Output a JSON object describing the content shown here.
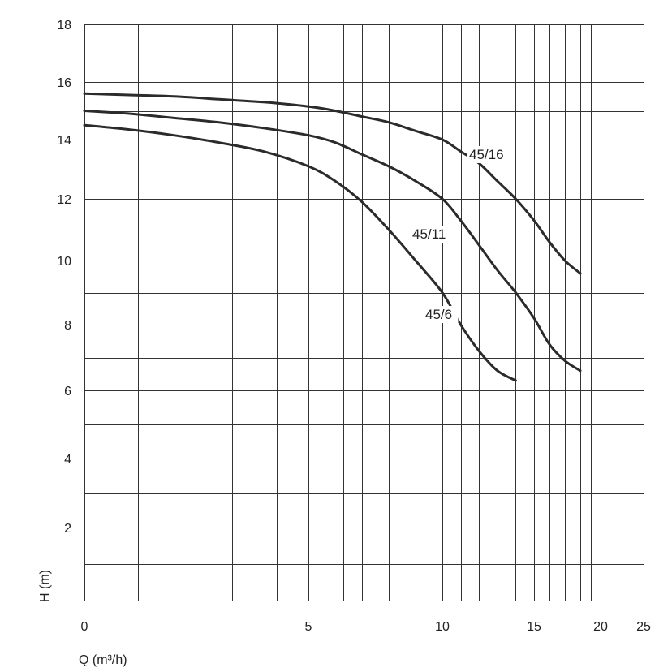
{
  "chart_data": {
    "type": "line",
    "title": "",
    "xlabel": "Q (m³/h)",
    "ylabel": "H (m)",
    "xlim": [
      0,
      25
    ],
    "ylim": [
      0,
      18
    ],
    "x_ticks": [
      {
        "value": 0,
        "label": "0"
      },
      {
        "value": 5,
        "label": "5"
      },
      {
        "value": 10,
        "label": "10"
      },
      {
        "value": 15,
        "label": "15"
      },
      {
        "value": 20,
        "label": "20"
      },
      {
        "value": 25,
        "label": "25"
      }
    ],
    "y_ticks": [
      {
        "value": 2,
        "label": "2"
      },
      {
        "value": 4,
        "label": "4"
      },
      {
        "value": 6,
        "label": "6"
      },
      {
        "value": 8,
        "label": "8"
      },
      {
        "value": 10,
        "label": "10"
      },
      {
        "value": 12,
        "label": "12"
      },
      {
        "value": 14,
        "label": "14"
      },
      {
        "value": 16,
        "label": "16"
      },
      {
        "value": 18,
        "label": "18"
      }
    ],
    "x_gridlines": [
      0,
      1.2,
      2.2,
      3.3,
      4.3,
      5,
      5.6,
      6.3,
      7,
      8,
      9,
      10,
      11,
      12,
      13,
      14,
      15,
      16,
      17,
      18,
      19,
      20,
      21,
      22,
      23,
      24,
      25
    ],
    "y_gridlines": [
      0,
      1,
      2,
      3,
      4,
      5,
      6,
      7,
      8,
      9,
      10,
      11,
      12,
      13,
      14,
      15,
      16,
      17,
      18
    ],
    "grid": true,
    "series": [
      {
        "name": "45/16",
        "x": [
          0,
          1,
          2,
          3,
          4,
          5,
          6,
          7,
          8,
          9,
          10,
          11,
          12,
          13,
          14,
          15,
          16,
          17,
          18
        ],
        "y": [
          15.6,
          15.55,
          15.5,
          15.4,
          15.3,
          15.15,
          15.0,
          14.8,
          14.6,
          14.3,
          14.0,
          13.6,
          13.2,
          12.6,
          12.0,
          11.3,
          10.6,
          10.0,
          9.6
        ]
      },
      {
        "name": "45/11",
        "x": [
          0,
          1,
          2,
          3,
          4,
          5,
          6,
          7,
          8,
          9,
          10,
          11,
          12,
          13,
          14,
          15,
          16,
          17,
          18
        ],
        "y": [
          15.0,
          14.9,
          14.75,
          14.6,
          14.4,
          14.15,
          13.9,
          13.5,
          13.1,
          12.6,
          12.0,
          11.3,
          10.5,
          9.7,
          9.0,
          8.2,
          7.4,
          6.9,
          6.6
        ]
      },
      {
        "name": "45/6",
        "x": [
          0,
          1,
          2,
          3,
          4,
          5,
          6,
          7,
          8,
          9,
          10,
          11,
          12,
          13,
          14
        ],
        "y": [
          14.5,
          14.35,
          14.15,
          13.9,
          13.6,
          13.1,
          12.6,
          11.9,
          11.0,
          10.0,
          9.0,
          8.0,
          7.2,
          6.6,
          6.3
        ]
      }
    ]
  }
}
